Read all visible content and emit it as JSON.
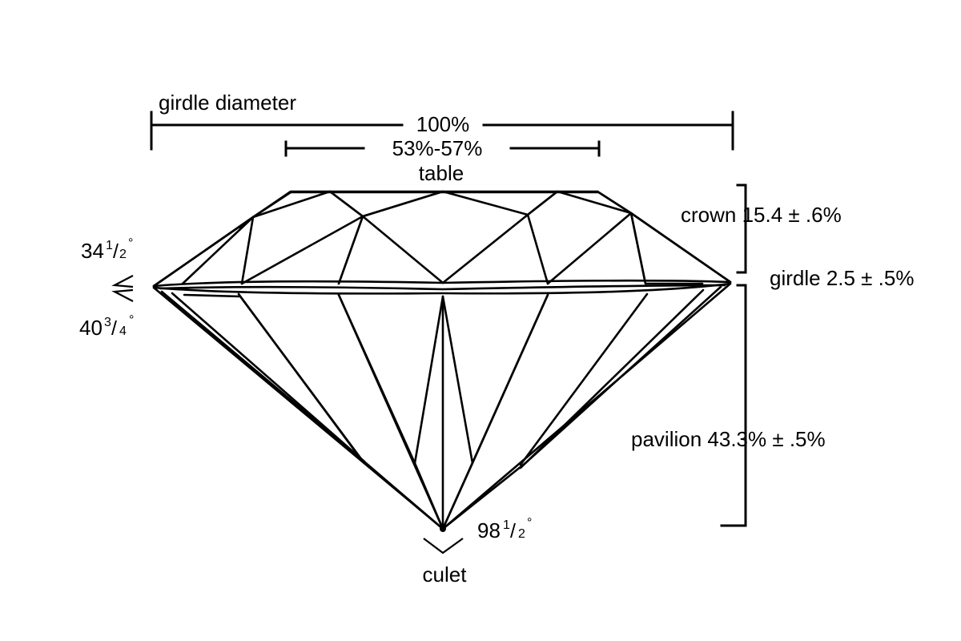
{
  "labels": {
    "girdle_diameter": "girdle diameter",
    "girdle_diameter_pct": "100%",
    "table_pct": "53%-57%",
    "table": "table",
    "crown": "crown 15.4 ± .6%",
    "girdle": "girdle 2.5 ± .5%",
    "pavilion": "pavilion 43.3% ± .5%",
    "culet": "culet"
  },
  "angles": {
    "crown_angle": {
      "whole": "34",
      "num": "1",
      "den": "2",
      "degree": "°"
    },
    "pavilion_angle": {
      "whole": "40",
      "num": "3",
      "den": "4",
      "degree": "°"
    },
    "culet_angle": {
      "whole": "98",
      "num": "1",
      "den": "2",
      "degree": "°"
    }
  },
  "colors": {
    "ink": "#000000",
    "background": "#ffffff"
  }
}
